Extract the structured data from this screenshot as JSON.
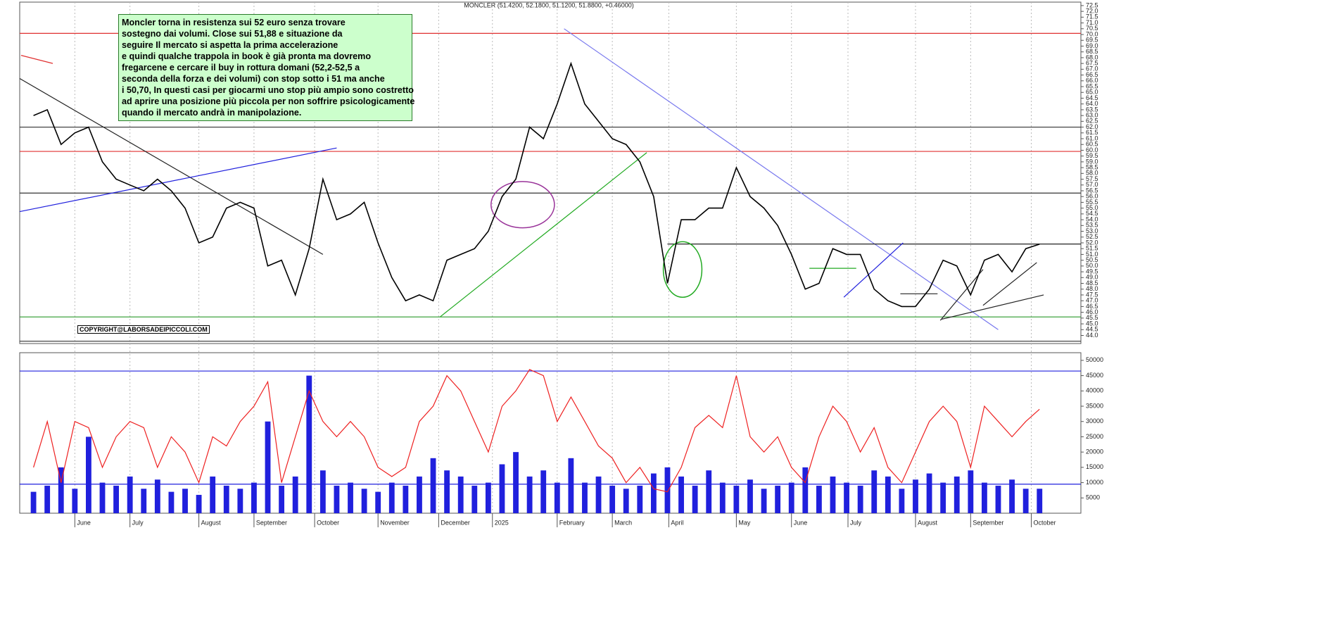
{
  "header": "MONCLER (51.4200, 52.1800, 51.1200, 51.8800, +0.46000)",
  "note": [
    "Moncler torna in resistenza sui 52 euro senza trovare",
    "sostegno dai volumi. Close sui 51,88 e situazione da",
    "seguire Il mercato si aspetta la prima accelerazione",
    "e quindi qualche trappola in book è già pronta ma dovremo",
    "fregarcene e cercare il buy in rottura domani (52,2-52,5 a",
    "seconda della forza e dei volumi) con stop sotto i 51 ma anche",
    "i 50,70, In questi casi per giocarmi uno stop più ampio sono costretto",
    "ad aprire una posizione più piccola per non soffrire psicologicamente",
    "quando il mercato andrà in manipolazione."
  ],
  "copyright": "COPYRIGHT@LABORSADEIPICCOLI.COM",
  "chart_data": [
    {
      "type": "line",
      "color": "#000000",
      "xlim": [
        -1,
        76
      ],
      "ylim": [
        43.3,
        72.8
      ],
      "xticks": [
        {
          "value": 3,
          "label": "June"
        },
        {
          "value": 7,
          "label": "July"
        },
        {
          "value": 12,
          "label": "August"
        },
        {
          "value": 16,
          "label": "September"
        },
        {
          "value": 20.4,
          "label": "October"
        },
        {
          "value": 25,
          "label": "November"
        },
        {
          "value": 29.4,
          "label": "December"
        },
        {
          "value": 33.3,
          "label": "2025"
        },
        {
          "value": 38,
          "label": "February"
        },
        {
          "value": 42,
          "label": "March"
        },
        {
          "value": 46.1,
          "label": "April"
        },
        {
          "value": 51,
          "label": "May"
        },
        {
          "value": 55,
          "label": "June"
        },
        {
          "value": 59.1,
          "label": "July"
        },
        {
          "value": 64,
          "label": "August"
        },
        {
          "value": 68,
          "label": "September"
        },
        {
          "value": 72.4,
          "label": "October"
        }
      ],
      "yticks": [
        {
          "value": 44,
          "label": "44.0"
        },
        44.5,
        {
          "value": 45,
          "label": "45.0"
        },
        45.5,
        {
          "value": 46,
          "label": "46.0"
        },
        46.5,
        {
          "value": 47,
          "label": "47.0"
        },
        47.5,
        {
          "value": 48,
          "label": "48.0"
        },
        48.5,
        {
          "value": 49,
          "label": "49.0"
        },
        49.5,
        {
          "value": 50,
          "label": "50.0"
        },
        50.5,
        {
          "value": 51,
          "label": "51.0"
        },
        51.5,
        {
          "value": 52,
          "label": "52.0"
        },
        52.5,
        {
          "value": 53,
          "label": "53.0"
        },
        53.5,
        {
          "value": 54,
          "label": "54.0"
        },
        54.5,
        {
          "value": 55,
          "label": "55.0"
        },
        55.5,
        {
          "value": 56,
          "label": "56.0"
        },
        56.5,
        {
          "value": 57,
          "label": "57.0"
        },
        57.5,
        {
          "value": 58,
          "label": "58.0"
        },
        58.5,
        {
          "value": 59,
          "label": "59.0"
        },
        59.5,
        {
          "value": 60,
          "label": "60.0"
        },
        60.5,
        {
          "value": 61,
          "label": "61.0"
        },
        61.5,
        {
          "value": 62,
          "label": "62.0"
        },
        62.5,
        {
          "value": 63,
          "label": "63.0"
        },
        63.5,
        {
          "value": 64,
          "label": "64.0"
        },
        64.5,
        {
          "value": 65,
          "label": "65.0"
        },
        65.5,
        {
          "value": 66,
          "label": "66.0"
        },
        66.5,
        {
          "value": 67,
          "label": "67.0"
        },
        67.5,
        {
          "value": 68,
          "label": "68.0"
        },
        68.5,
        {
          "value": 69,
          "label": "69.0"
        },
        69.5,
        {
          "value": 70,
          "label": "70.0"
        },
        70.5,
        {
          "value": 71,
          "label": "71.0"
        },
        71.5,
        {
          "value": 72,
          "label": "72.0"
        },
        72.5
      ],
      "values": [
        63.0,
        63.5,
        60.5,
        61.5,
        62.0,
        59.0,
        57.5,
        57.0,
        56.5,
        57.5,
        56.5,
        55.0,
        52.0,
        52.5,
        55.0,
        55.5,
        55.0,
        50.0,
        50.5,
        47.5,
        51.5,
        57.5,
        54.0,
        54.5,
        55.5,
        52.0,
        49.0,
        47.0,
        47.5,
        47.0,
        50.5,
        51.0,
        51.5,
        53.0,
        56.0,
        57.5,
        62.0,
        61.0,
        64.0,
        67.5,
        64.0,
        62.5,
        61.0,
        60.5,
        59.0,
        56.0,
        48.5,
        54.0,
        54.0,
        55.0,
        55.0,
        58.5,
        56.0,
        55.0,
        53.5,
        51.0,
        48.0,
        48.5,
        51.5,
        51.0,
        51.0,
        48.0,
        47.0,
        46.5,
        46.5,
        48.0,
        50.5,
        50.0,
        47.5,
        50.5,
        51.0,
        49.5,
        51.5,
        51.88
      ],
      "levels": [
        {
          "value": 70.1,
          "color": "#e03030"
        },
        {
          "value": 62.0,
          "color": "#333333"
        },
        {
          "value": 59.9,
          "color": "#e03030"
        },
        {
          "value": 56.3,
          "color": "#333333"
        },
        {
          "value": 45.6,
          "color": "#2a9a2a"
        },
        {
          "value": 43.5,
          "color": "#333333"
        }
      ],
      "trendlines": [
        {
          "x": [
            -1,
            21
          ],
          "y": [
            66.2,
            51.0
          ],
          "color": "#222222"
        },
        {
          "x": [
            -1,
            22
          ],
          "y": [
            54.7,
            60.2
          ],
          "color": "#2020dd"
        },
        {
          "x": [
            -0.9,
            1.4
          ],
          "y": [
            68.2,
            67.5
          ],
          "color": "#e03030"
        },
        {
          "x": [
            29.5,
            44.5
          ],
          "y": [
            45.6,
            59.8
          ],
          "color": "#22aa22"
        },
        {
          "x": [
            38.5,
            70.0
          ],
          "y": [
            70.5,
            44.5
          ],
          "color": "#7777ee"
        },
        {
          "x": [
            46,
            76
          ],
          "y": [
            51.9,
            51.9
          ],
          "color": "#222222"
        },
        {
          "x": [
            56.3,
            59.7
          ],
          "y": [
            49.8,
            49.8
          ],
          "color": "#22aa22"
        },
        {
          "x": [
            58.8,
            63.1
          ],
          "y": [
            47.3,
            52.0
          ],
          "color": "#2020dd"
        },
        {
          "x": [
            62.9,
            65.6
          ],
          "y": [
            47.6,
            47.6
          ],
          "color": "#222222"
        },
        {
          "x": [
            65.8,
            68.9
          ],
          "y": [
            45.3,
            49.7
          ],
          "color": "#222222"
        },
        {
          "x": [
            68.9,
            72.8
          ],
          "y": [
            46.6,
            50.3
          ],
          "color": "#222222"
        },
        {
          "x": [
            65.9,
            73.3
          ],
          "y": [
            45.4,
            47.5
          ],
          "color": "#222222"
        }
      ],
      "ellipses": [
        {
          "x": 35.5,
          "y": 55.3,
          "rx": 2.3,
          "ry": 2.0,
          "color": "#993399"
        },
        {
          "x": 47.1,
          "y": 49.7,
          "rx": 1.4,
          "ry": 2.4,
          "color": "#22aa22"
        }
      ]
    },
    {
      "type": "bar",
      "xlim": [
        -1,
        76
      ],
      "ylim": [
        0,
        52500
      ],
      "yticks": [
        5000,
        10000,
        15000,
        20000,
        25000,
        30000,
        35000,
        40000,
        45000,
        50000
      ],
      "levels": [
        {
          "value": 46500,
          "color": "#2020dd"
        },
        {
          "value": 9500,
          "color": "#2020dd"
        }
      ],
      "series": [
        {
          "type": "bar",
          "color": "#2020dd",
          "values": [
            7000,
            9000,
            15000,
            8000,
            25000,
            10000,
            9000,
            12000,
            8000,
            11000,
            7000,
            8000,
            6000,
            12000,
            9000,
            8000,
            10000,
            30000,
            9000,
            12000,
            45000,
            14000,
            9000,
            10000,
            8000,
            7000,
            10000,
            9000,
            12000,
            18000,
            14000,
            12000,
            9000,
            10000,
            16000,
            20000,
            12000,
            14000,
            10000,
            18000,
            10000,
            12000,
            9000,
            8000,
            9000,
            13000,
            15000,
            12000,
            9000,
            14000,
            10000,
            9000,
            11000,
            8000,
            9000,
            10000,
            15000,
            9000,
            12000,
            10000,
            9000,
            14000,
            12000,
            8000,
            11000,
            13000,
            10000,
            12000,
            14000,
            10000,
            9000,
            11000,
            8000,
            8000
          ]
        },
        {
          "type": "line",
          "color": "#ee2020",
          "values": [
            15000,
            30000,
            10000,
            30000,
            28000,
            15000,
            25000,
            30000,
            28000,
            15000,
            25000,
            20000,
            10000,
            25000,
            22000,
            30000,
            35000,
            43000,
            10000,
            25000,
            40000,
            30000,
            25000,
            30000,
            25000,
            15000,
            12000,
            15000,
            30000,
            35000,
            45000,
            40000,
            30000,
            20000,
            35000,
            40000,
            47000,
            45000,
            30000,
            38000,
            30000,
            22000,
            18000,
            10000,
            15000,
            8000,
            7000,
            15000,
            28000,
            32000,
            28000,
            45000,
            25000,
            20000,
            25000,
            15000,
            10000,
            25000,
            35000,
            30000,
            20000,
            28000,
            15000,
            10000,
            20000,
            30000,
            35000,
            30000,
            15000,
            35000,
            30000,
            25000,
            30000,
            34000
          ]
        }
      ]
    }
  ]
}
